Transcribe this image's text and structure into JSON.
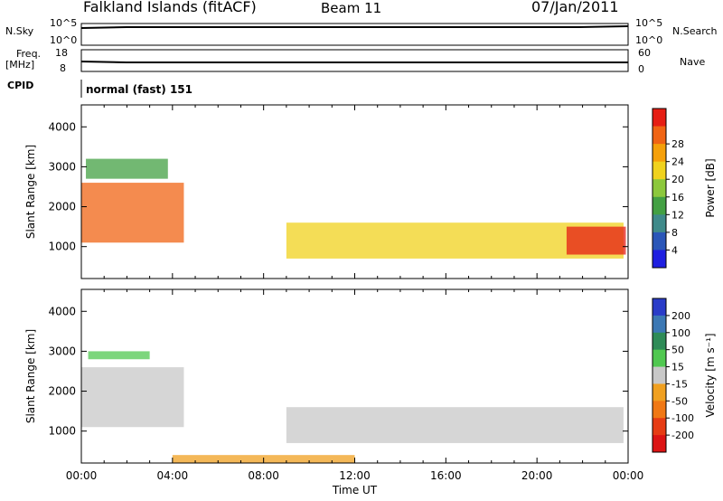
{
  "header": {
    "station": "Falkland Islands (fitACF)",
    "beam": "Beam 11",
    "date": "07/Jan/2011"
  },
  "status_panels": {
    "nsky_label": "N.Sky",
    "nsky_ticks": [
      "10^5",
      "10^0"
    ],
    "nsearch_label": "N.Search",
    "nsearch_ticks": [
      "10^5",
      "10^0"
    ],
    "freq_label_line1": "Freq.",
    "freq_label_line2": "[MHz]",
    "freq_ticks": [
      "18",
      "8"
    ],
    "nave_label": "Nave",
    "nave_ticks": [
      "60",
      "0"
    ],
    "cpid_label": "CPID",
    "cpid_value": "normal (fast) 151"
  },
  "chart_data": [
    {
      "type": "heatmap",
      "name": "power",
      "ylabel": "Slant Range [km]",
      "yticks": [
        1000,
        2000,
        3000,
        4000
      ],
      "ylim": [
        200,
        4550
      ],
      "xlim_hours": [
        0,
        24
      ],
      "colorbar_label": "Power [dB]",
      "colorbar_ticks": [
        4,
        8,
        12,
        16,
        20,
        24,
        28
      ],
      "colorbar_colors": [
        "#1f1fe0",
        "#2a56b8",
        "#3f8a8a",
        "#43a043",
        "#8cc83c",
        "#f0d21e",
        "#f5a00a",
        "#f06414",
        "#e61e14"
      ],
      "echo_regions": [
        {
          "t0": 0.0,
          "t1": 4.5,
          "r_bottom": 1100,
          "r_top": 2600,
          "value": 24
        },
        {
          "t0": 0.2,
          "t1": 3.8,
          "r_bottom": 2700,
          "r_top": 3200,
          "value": 12
        },
        {
          "t0": 9.0,
          "t1": 23.8,
          "r_bottom": 700,
          "r_top": 1600,
          "value": 18
        },
        {
          "t0": 21.3,
          "t1": 23.9,
          "r_bottom": 800,
          "r_top": 1500,
          "value": 26
        }
      ]
    },
    {
      "type": "heatmap",
      "name": "velocity",
      "ylabel": "Slant Range [km]",
      "yticks": [
        1000,
        2000,
        3000,
        4000
      ],
      "ylim": [
        200,
        4550
      ],
      "xlim_hours": [
        0,
        24
      ],
      "xticks": [
        "00:00",
        "04:00",
        "08:00",
        "12:00",
        "16:00",
        "20:00",
        "00:00"
      ],
      "xlabel": "Time UT",
      "colorbar_label": "Velocity [m s⁻¹]",
      "colorbar_ticks": [
        200,
        100,
        50,
        15,
        -15,
        -50,
        -100,
        -200
      ],
      "colorbar_colors": [
        "#2a3cc8",
        "#3c78b4",
        "#2e8b57",
        "#50c850",
        "#c8c8c8",
        "#f0a020",
        "#f07814",
        "#e63c14",
        "#dc1414"
      ],
      "echo_regions": [
        {
          "t0": 0.0,
          "t1": 4.5,
          "r_bottom": 1100,
          "r_top": 2600,
          "value": 0
        },
        {
          "t0": 0.3,
          "t1": 3.0,
          "r_bottom": 2800,
          "r_top": 3000,
          "value": 60
        },
        {
          "t0": 9.0,
          "t1": 23.8,
          "r_bottom": 700,
          "r_top": 1600,
          "value": 0
        },
        {
          "t0": 4.0,
          "t1": 12.0,
          "r_bottom": 200,
          "r_top": 400,
          "value": -60
        }
      ]
    }
  ]
}
